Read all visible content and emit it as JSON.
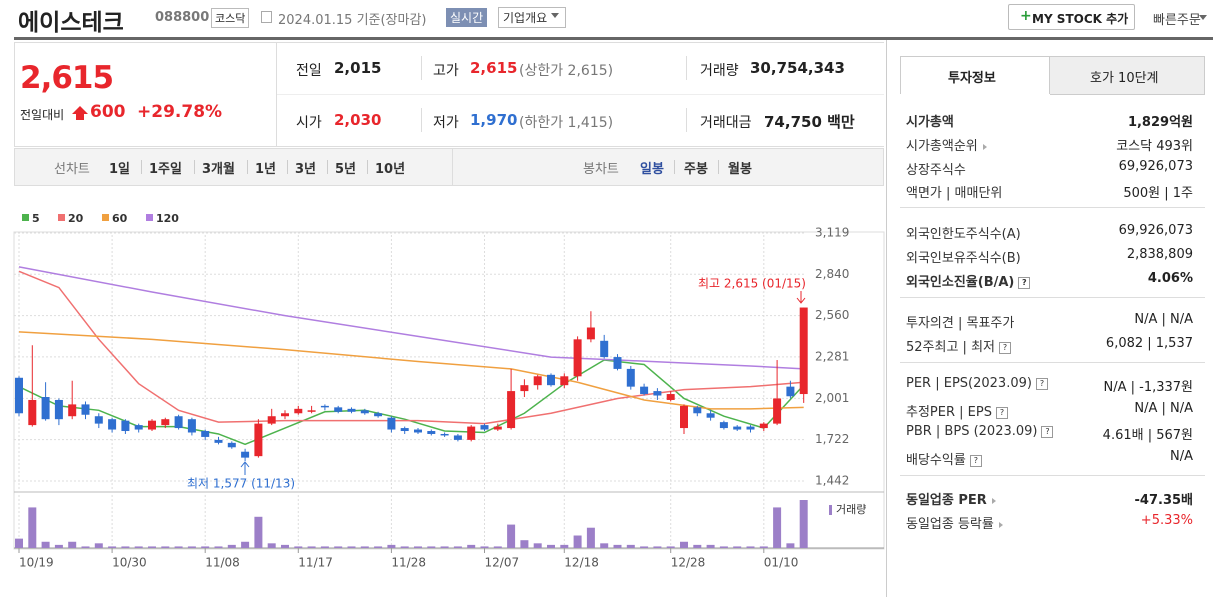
{
  "header": {
    "name": "에이스테크",
    "code": "088800",
    "market": "코스닥",
    "date": "2024.01.15 기준(장마감)",
    "realtime": "실시간",
    "overview": "기업개요",
    "mystock": "MY STOCK 추가",
    "quick_order": "빠른주문"
  },
  "price": {
    "current": "2,615",
    "change_label": "전일대비",
    "change": "600",
    "change_rate": "+29.78%"
  },
  "summary": {
    "prev": {
      "label": "전일",
      "value": "2,015"
    },
    "high": {
      "label": "고가",
      "value": "2,615",
      "limit": "(상한가 2,615)"
    },
    "volume": {
      "label": "거래량",
      "value": "30,754,343"
    },
    "open": {
      "label": "시가",
      "value": "2,030"
    },
    "low": {
      "label": "저가",
      "value": "1,970",
      "limit": "(하한가 1,415)"
    },
    "amount": {
      "label": "거래대금",
      "value": "74,750 백만"
    }
  },
  "tabs": {
    "line_chart": "선차트",
    "line_periods": [
      "1일",
      "1주일",
      "3개월",
      "1년",
      "3년",
      "5년",
      "10년"
    ],
    "candle_chart": "봉차트",
    "candle_periods": [
      "일봉",
      "주봉",
      "월봉"
    ]
  },
  "chart_data": {
    "type": "candlestick",
    "up_color": "#e8262c",
    "down_color": "#2f6fd0",
    "volume_color": "#9c7fc8",
    "categories": [
      "10/19",
      null,
      null,
      null,
      null,
      null,
      null,
      "10/30",
      null,
      null,
      null,
      null,
      null,
      null,
      "11/08",
      null,
      null,
      null,
      null,
      null,
      null,
      "11/17",
      null,
      null,
      null,
      null,
      null,
      null,
      "11/28",
      null,
      null,
      null,
      null,
      null,
      null,
      "12/07",
      null,
      null,
      null,
      null,
      null,
      "12/18",
      null,
      null,
      null,
      null,
      null,
      null,
      null,
      "12/28",
      null,
      null,
      null,
      null,
      null,
      null,
      "01/10",
      null,
      null,
      null
    ],
    "open": [
      2140,
      1820,
      2010,
      1990,
      1880,
      1960,
      1880,
      1860,
      1850,
      1820,
      1790,
      1820,
      1880,
      1860,
      1780,
      1720,
      1700,
      1640,
      1610,
      1830,
      1880,
      1900,
      1910,
      1950,
      1940,
      1930,
      1920,
      1900,
      1870,
      1800,
      1790,
      1780,
      1760,
      1750,
      1720,
      1820,
      1790,
      1800,
      2050,
      2090,
      2160,
      2090,
      2150,
      2400,
      2390,
      2280,
      2200,
      2080,
      2050,
      1990,
      1800,
      1940,
      1900,
      1840,
      1810,
      1810,
      1800,
      1830,
      2080,
      2030
    ],
    "high": [
      2150,
      2360,
      2110,
      2000,
      2120,
      1980,
      1900,
      1870,
      1860,
      1830,
      1860,
      1870,
      1890,
      1870,
      1790,
      1740,
      1710,
      1660,
      1860,
      1930,
      1920,
      1950,
      1950,
      1960,
      1950,
      1940,
      1930,
      1910,
      1880,
      1810,
      1800,
      1790,
      1770,
      1760,
      1820,
      1830,
      1830,
      2200,
      2130,
      2160,
      2170,
      2170,
      2420,
      2590,
      2430,
      2300,
      2220,
      2100,
      2070,
      2050,
      1960,
      1950,
      1920,
      1850,
      1820,
      1820,
      1840,
      2260,
      2120,
      2615
    ],
    "low": [
      1880,
      1810,
      1850,
      1820,
      1860,
      1860,
      1800,
      1770,
      1760,
      1770,
      1780,
      1800,
      1790,
      1750,
      1720,
      1690,
      1660,
      1577,
      1600,
      1820,
      1860,
      1890,
      1900,
      1920,
      1900,
      1900,
      1890,
      1870,
      1770,
      1760,
      1760,
      1750,
      1740,
      1710,
      1710,
      1780,
      1780,
      1790,
      2010,
      2060,
      2080,
      2070,
      2120,
      2380,
      2270,
      2190,
      2060,
      2020,
      1990,
      1980,
      1760,
      1880,
      1850,
      1790,
      1780,
      1770,
      1780,
      1820,
      2000,
      1970
    ],
    "close": [
      1900,
      1990,
      1860,
      1860,
      1960,
      1890,
      1830,
      1790,
      1780,
      1790,
      1850,
      1860,
      1800,
      1770,
      1740,
      1700,
      1670,
      1600,
      1830,
      1880,
      1900,
      1930,
      1920,
      1940,
      1910,
      1910,
      1900,
      1880,
      1790,
      1780,
      1770,
      1760,
      1750,
      1720,
      1810,
      1790,
      1810,
      2050,
      2090,
      2150,
      2090,
      2150,
      2400,
      2480,
      2280,
      2200,
      2080,
      2030,
      2020,
      2030,
      1950,
      1900,
      1870,
      1800,
      1790,
      1790,
      1830,
      2000,
      2015,
      2615
    ],
    "volume": [
      6000000,
      26000000,
      4000000,
      2000000,
      4000000,
      1000000,
      3000000,
      1000000,
      1000000,
      1000000,
      1000000,
      1000000,
      1000000,
      1000000,
      1000000,
      1000000,
      2000000,
      4000000,
      20000000,
      3000000,
      2000000,
      1000000,
      1000000,
      1000000,
      1000000,
      1000000,
      1000000,
      1000000,
      2000000,
      1000000,
      1000000,
      1000000,
      1000000,
      1000000,
      2000000,
      1000000,
      1000000,
      15000000,
      5000000,
      3000000,
      2000000,
      2000000,
      8000000,
      13000000,
      3000000,
      2000000,
      2000000,
      1000000,
      1000000,
      1000000,
      4000000,
      2000000,
      2000000,
      1000000,
      1000000,
      1000000,
      1000000,
      26000000,
      3000000,
      30754343
    ],
    "series": [
      {
        "name": "5",
        "color": "#4db34d",
        "x": [
          0,
          3,
          6,
          9,
          12,
          15,
          17,
          20,
          23,
          26,
          29,
          32,
          35,
          38,
          41,
          44,
          47,
          50,
          53,
          56,
          59
        ],
        "values": [
          2080,
          1950,
          1920,
          1810,
          1810,
          1760,
          1690,
          1800,
          1910,
          1920,
          1860,
          1780,
          1770,
          1900,
          2100,
          2260,
          2230,
          2000,
          1880,
          1800,
          2090
        ]
      },
      {
        "name": "20",
        "color": "#f07070",
        "x": [
          0,
          3,
          6,
          9,
          12,
          15,
          20,
          25,
          30,
          35,
          40,
          45,
          50,
          55,
          59
        ],
        "values": [
          2860,
          2750,
          2400,
          2100,
          1920,
          1840,
          1850,
          1850,
          1850,
          1830,
          1900,
          2000,
          2060,
          2080,
          2110
        ]
      },
      {
        "name": "60",
        "color": "#f0a040",
        "x": [
          0,
          10,
          20,
          30,
          37,
          42,
          47,
          52,
          55,
          59
        ],
        "values": [
          2450,
          2400,
          2330,
          2250,
          2200,
          2110,
          1990,
          1930,
          1930,
          1940
        ]
      },
      {
        "name": "120",
        "color": "#b07ee0",
        "x": [
          0,
          10,
          20,
          30,
          40,
          45,
          50,
          55,
          59
        ],
        "values": [
          2890,
          2720,
          2560,
          2420,
          2280,
          2260,
          2240,
          2220,
          2200
        ]
      }
    ],
    "ylim": [
      1442,
      3119
    ],
    "yticks": [
      {
        "value": 1442,
        "label": "1,442"
      },
      {
        "value": 1722,
        "label": "1,722"
      },
      {
        "value": 2001,
        "label": "2,001"
      },
      {
        "value": 2281,
        "label": "2,281"
      },
      {
        "value": 2560,
        "label": "2,560"
      },
      {
        "value": 2840,
        "label": "2,840"
      },
      {
        "value": 3119,
        "label": "3,119"
      }
    ],
    "grid": true,
    "high_label": "최고 2,615 (01/15)",
    "low_label": "최저 1,577 (11/13)",
    "volume_label": "거래량"
  },
  "info": {
    "tabs": [
      "투자정보",
      "호가 10단계"
    ],
    "groups": [
      [
        {
          "label": "시가총액",
          "value": "1,829억원"
        },
        {
          "label": "시가총액순위",
          "value": "코스닥 493위"
        },
        {
          "label": "상장주식수",
          "value": "69,926,073"
        },
        {
          "label": "액면가 | 매매단위",
          "value": "500원 | 1주"
        }
      ],
      [
        {
          "label": "외국인한도주식수(A)",
          "value": "69,926,073"
        },
        {
          "label": "외국인보유주식수(B)",
          "value": "2,838,809"
        },
        {
          "label": "외국인소진율(B/A)",
          "value": "4.06%"
        }
      ],
      [
        {
          "label": "투자의견 | 목표주가",
          "value": "N/A | N/A"
        },
        {
          "label": "52주최고 | 최저",
          "value": "6,082 | 1,537"
        }
      ],
      [
        {
          "label": "PER | EPS(2023.09)",
          "value": "N/A | -1,337원"
        },
        {
          "label": "추정PER | EPS",
          "value": "N/A | N/A"
        },
        {
          "label": "PBR | BPS (2023.09)",
          "value": "4.61배 | 567원"
        },
        {
          "label": "배당수익률",
          "value": "N/A"
        }
      ],
      [
        {
          "label": "동일업종 PER",
          "value": "-47.35배"
        },
        {
          "label": "동일업종 등락률",
          "value": "+5.33%"
        }
      ]
    ]
  }
}
